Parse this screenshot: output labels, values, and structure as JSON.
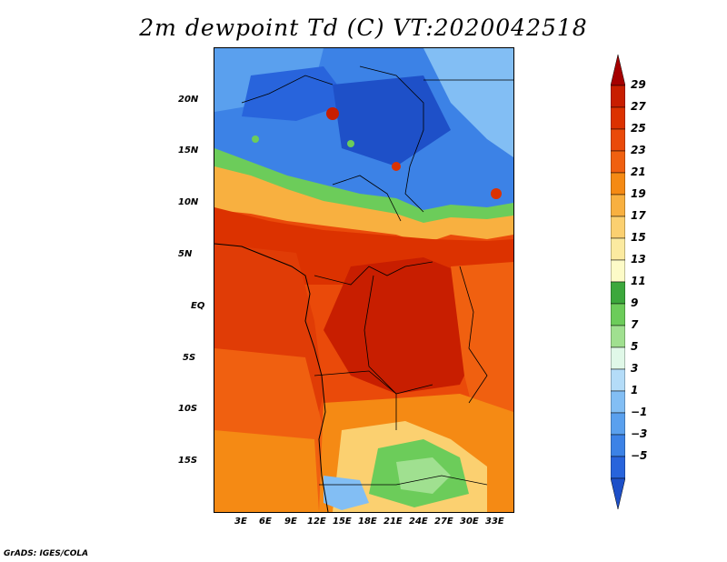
{
  "title": "2m dewpoint Td (C) VT:2020042518",
  "credit": "GrADS: IGES/COLA",
  "lat_labels": [
    "20N",
    "15N",
    "10N",
    "5N",
    "EQ",
    "5S",
    "10S",
    "15S"
  ],
  "lon_labels": [
    "3E",
    "6E",
    "9E",
    "12E",
    "15E",
    "18E",
    "21E",
    "24E",
    "27E",
    "30E",
    "33E"
  ],
  "colorbar": {
    "labels": [
      "29",
      "27",
      "25",
      "23",
      "21",
      "19",
      "17",
      "15",
      "13",
      "11",
      "9",
      "7",
      "5",
      "3",
      "1",
      "−1",
      "−3",
      "−5"
    ],
    "colors": [
      "#a50000",
      "#c81e00",
      "#dc3200",
      "#ea4a0a",
      "#f06010",
      "#f58a14",
      "#f8b040",
      "#fbd070",
      "#fbeaa0",
      "#fdfbc8",
      "#3ca83c",
      "#6ccc5a",
      "#a0e090",
      "#e0f8e8",
      "#b4dcf8",
      "#82bef4",
      "#5aa0ee",
      "#3c82e6",
      "#2864dc",
      "#1e50c8"
    ]
  },
  "legend": {
    "min": -5,
    "max": 29,
    "step": 2
  }
}
